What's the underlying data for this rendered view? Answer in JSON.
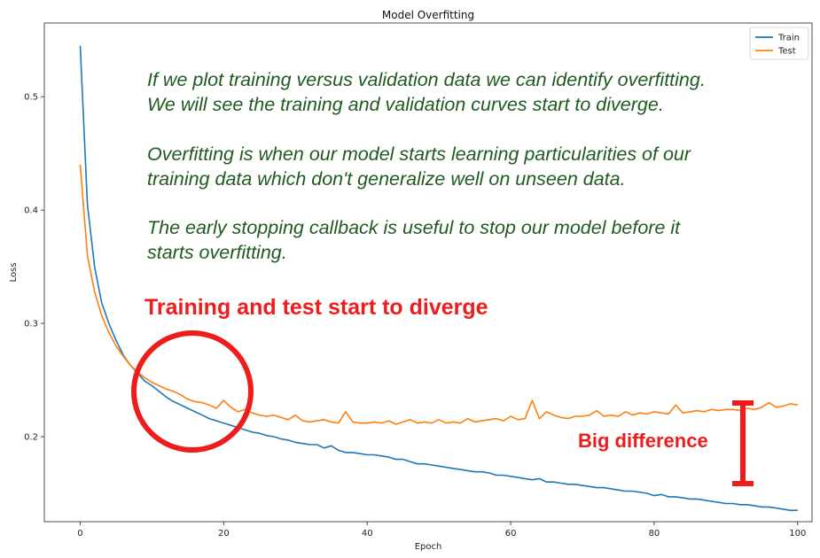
{
  "chart_data": {
    "type": "line",
    "title": "Model Overfitting",
    "xlabel": "Epoch",
    "ylabel": "Loss",
    "xlim": [
      -5,
      102
    ],
    "ylim": [
      0.125,
      0.565
    ],
    "xticks": [
      0,
      20,
      40,
      60,
      80,
      100
    ],
    "yticks": [
      0.2,
      0.3,
      0.4,
      0.5
    ],
    "legend": "top-right",
    "grid": false,
    "series": [
      {
        "name": "Train",
        "color": "#1f77b4",
        "x": [
          0,
          1,
          2,
          3,
          4,
          5,
          6,
          7,
          8,
          9,
          10,
          11,
          12,
          13,
          14,
          15,
          16,
          17,
          18,
          19,
          20,
          21,
          22,
          23,
          24,
          25,
          26,
          27,
          28,
          29,
          30,
          31,
          32,
          33,
          34,
          35,
          36,
          37,
          38,
          39,
          40,
          41,
          42,
          43,
          44,
          45,
          46,
          47,
          48,
          49,
          50,
          51,
          52,
          53,
          54,
          55,
          56,
          57,
          58,
          59,
          60,
          61,
          62,
          63,
          64,
          65,
          66,
          67,
          68,
          69,
          70,
          71,
          72,
          73,
          74,
          75,
          76,
          77,
          78,
          79,
          80,
          81,
          82,
          83,
          84,
          85,
          86,
          87,
          88,
          89,
          90,
          91,
          92,
          93,
          94,
          95,
          96,
          97,
          98,
          99,
          100
        ],
        "values": [
          0.545,
          0.405,
          0.35,
          0.318,
          0.3,
          0.285,
          0.272,
          0.263,
          0.256,
          0.249,
          0.245,
          0.24,
          0.235,
          0.231,
          0.228,
          0.225,
          0.222,
          0.219,
          0.216,
          0.214,
          0.212,
          0.21,
          0.208,
          0.206,
          0.204,
          0.203,
          0.201,
          0.2,
          0.198,
          0.197,
          0.195,
          0.194,
          0.193,
          0.193,
          0.19,
          0.192,
          0.188,
          0.186,
          0.186,
          0.185,
          0.184,
          0.184,
          0.183,
          0.182,
          0.18,
          0.18,
          0.178,
          0.176,
          0.176,
          0.175,
          0.174,
          0.173,
          0.172,
          0.171,
          0.17,
          0.169,
          0.169,
          0.168,
          0.166,
          0.166,
          0.165,
          0.164,
          0.163,
          0.162,
          0.163,
          0.16,
          0.16,
          0.159,
          0.158,
          0.158,
          0.157,
          0.156,
          0.155,
          0.155,
          0.154,
          0.153,
          0.152,
          0.152,
          0.151,
          0.15,
          0.148,
          0.149,
          0.147,
          0.147,
          0.146,
          0.145,
          0.145,
          0.144,
          0.143,
          0.142,
          0.141,
          0.141,
          0.14,
          0.14,
          0.139,
          0.138,
          0.138,
          0.137,
          0.136,
          0.135,
          0.135
        ]
      },
      {
        "name": "Test",
        "color": "#ff7f0e",
        "x": [
          0,
          1,
          2,
          3,
          4,
          5,
          6,
          7,
          8,
          9,
          10,
          11,
          12,
          13,
          14,
          15,
          16,
          17,
          18,
          19,
          20,
          21,
          22,
          23,
          24,
          25,
          26,
          27,
          28,
          29,
          30,
          31,
          32,
          33,
          34,
          35,
          36,
          37,
          38,
          39,
          40,
          41,
          42,
          43,
          44,
          45,
          46,
          47,
          48,
          49,
          50,
          51,
          52,
          53,
          54,
          55,
          56,
          57,
          58,
          59,
          60,
          61,
          62,
          63,
          64,
          65,
          66,
          67,
          68,
          69,
          70,
          71,
          72,
          73,
          74,
          75,
          76,
          77,
          78,
          79,
          80,
          81,
          82,
          83,
          84,
          85,
          86,
          87,
          88,
          89,
          90,
          91,
          92,
          93,
          94,
          95,
          96,
          97,
          98,
          99,
          100
        ],
        "values": [
          0.44,
          0.36,
          0.328,
          0.307,
          0.292,
          0.28,
          0.271,
          0.263,
          0.257,
          0.252,
          0.248,
          0.245,
          0.242,
          0.24,
          0.237,
          0.233,
          0.231,
          0.23,
          0.228,
          0.225,
          0.232,
          0.226,
          0.222,
          0.224,
          0.221,
          0.219,
          0.218,
          0.219,
          0.217,
          0.215,
          0.219,
          0.214,
          0.213,
          0.214,
          0.215,
          0.213,
          0.212,
          0.222,
          0.213,
          0.212,
          0.212,
          0.213,
          0.212,
          0.214,
          0.211,
          0.213,
          0.215,
          0.212,
          0.213,
          0.212,
          0.215,
          0.212,
          0.213,
          0.212,
          0.216,
          0.213,
          0.214,
          0.215,
          0.216,
          0.214,
          0.218,
          0.215,
          0.216,
          0.232,
          0.216,
          0.222,
          0.219,
          0.217,
          0.216,
          0.218,
          0.218,
          0.219,
          0.223,
          0.218,
          0.219,
          0.218,
          0.222,
          0.219,
          0.221,
          0.22,
          0.222,
          0.221,
          0.22,
          0.228,
          0.221,
          0.222,
          0.223,
          0.222,
          0.224,
          0.223,
          0.224,
          0.224,
          0.223,
          0.225,
          0.224,
          0.226,
          0.23,
          0.226,
          0.227,
          0.229,
          0.228
        ]
      }
    ]
  },
  "annotations": {
    "intro": [
      "If we plot training versus validation data we can identify overfitting.",
      "We will see the training and validation curves start to diverge."
    ],
    "definition": [
      "Overfitting is when our model starts learning particularities of our",
      "training data which don't generalize well on unseen data."
    ],
    "early_stopping": [
      "The early stopping callback is useful to stop our model before it",
      "starts overfitting."
    ],
    "diverge_label": "Training and test start to diverge",
    "difference_label": "Big difference",
    "text_color": "#1f5a1f",
    "marker_color": "#ee1c1c"
  }
}
